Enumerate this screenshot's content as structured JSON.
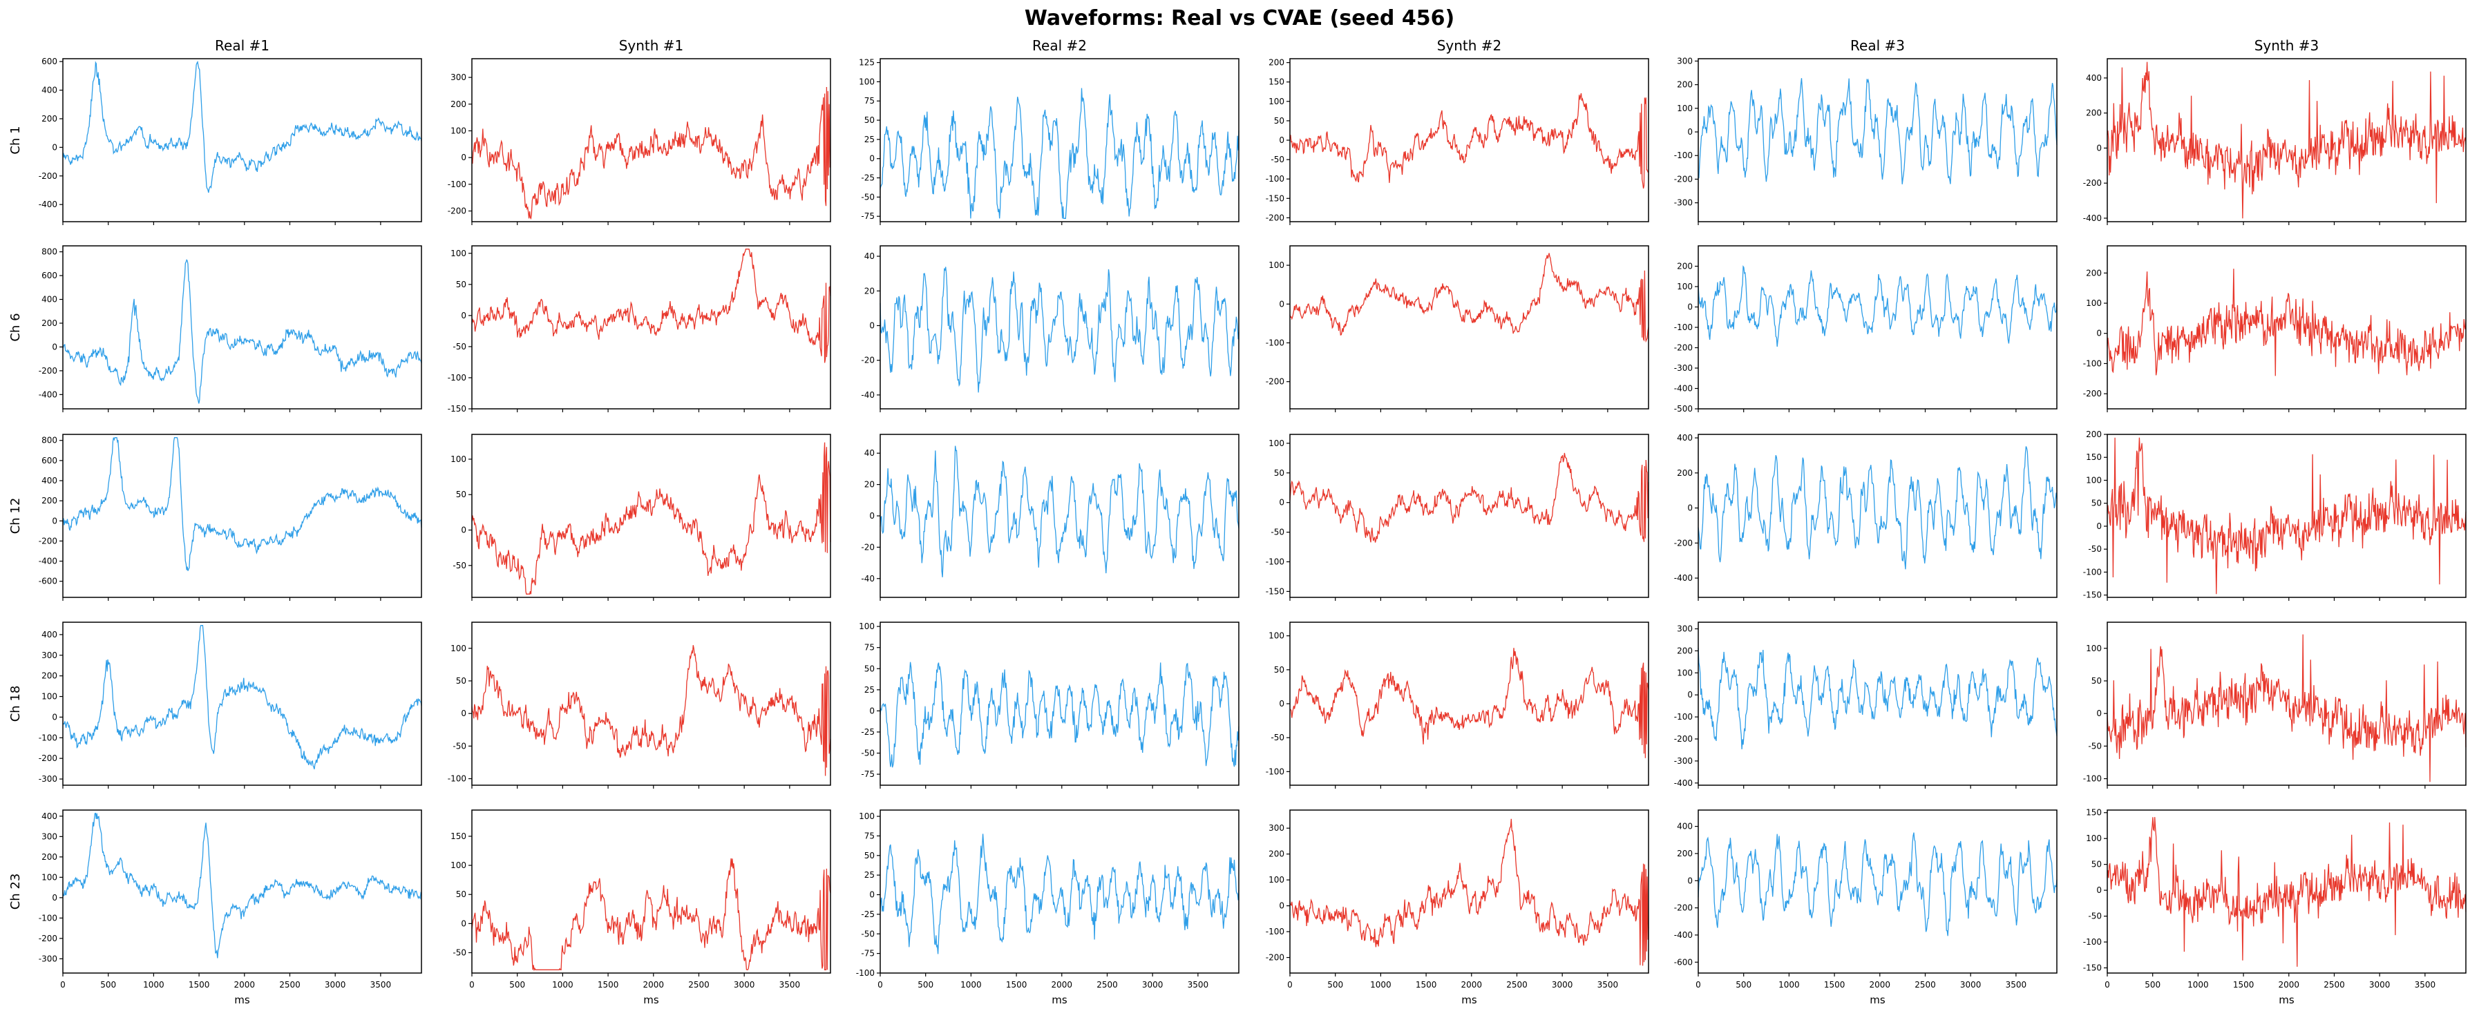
{
  "figure": {
    "title": "Waveforms: Real vs CVAE (seed 456)",
    "colors": {
      "real": "#2e9ee8",
      "synth": "#e8372b",
      "frame": "#000000"
    },
    "x_label": "ms",
    "x_ticks": [
      0,
      500,
      1000,
      1500,
      2000,
      2500,
      3000,
      3500
    ],
    "x_range": [
      0,
      3950
    ]
  },
  "columns": [
    "Real #1",
    "Synth #1",
    "Real #2",
    "Synth #2",
    "Real #3",
    "Synth #3"
  ],
  "rows": [
    "Ch 1",
    "Ch 6",
    "Ch 12",
    "Ch 18",
    "Ch 23"
  ],
  "chart_data": [
    {
      "type": "line",
      "row": "Ch 1",
      "column": "Real #1",
      "kind": "real",
      "ylim": [
        -520,
        620
      ],
      "yticks": [
        -400,
        -200,
        0,
        200,
        400,
        600
      ],
      "shape": "ecg",
      "amp": 560,
      "seed": 11
    },
    {
      "type": "line",
      "row": "Ch 1",
      "column": "Synth #1",
      "kind": "synth",
      "ylim": [
        -240,
        370
      ],
      "yticks": [
        -200,
        -100,
        0,
        100,
        200,
        300
      ],
      "shape": "smooth",
      "amp": 340,
      "seed": 12
    },
    {
      "type": "line",
      "row": "Ch 1",
      "column": "Real #2",
      "kind": "real",
      "ylim": [
        -82,
        130
      ],
      "yticks": [
        -75,
        -50,
        -25,
        0,
        25,
        50,
        75,
        100,
        125
      ],
      "shape": "periodic",
      "amp": 120,
      "seed": 13
    },
    {
      "type": "line",
      "row": "Ch 1",
      "column": "Synth #2",
      "kind": "synth",
      "ylim": [
        -210,
        210
      ],
      "yticks": [
        -200,
        -150,
        -100,
        -50,
        0,
        50,
        100,
        150,
        200
      ],
      "shape": "smooth",
      "amp": 190,
      "seed": 14
    },
    {
      "type": "line",
      "row": "Ch 1",
      "column": "Real #3",
      "kind": "real",
      "ylim": [
        -380,
        310
      ],
      "yticks": [
        -300,
        -200,
        -100,
        0,
        100,
        200,
        300
      ],
      "shape": "noisy",
      "amp": 280,
      "seed": 15
    },
    {
      "type": "line",
      "row": "Ch 1",
      "column": "Synth #3",
      "kind": "synth",
      "ylim": [
        -420,
        510
      ],
      "yticks": [
        -400,
        -200,
        0,
        200,
        400
      ],
      "shape": "spiky",
      "amp": 480,
      "seed": 16
    },
    {
      "type": "line",
      "row": "Ch 6",
      "column": "Real #1",
      "kind": "real",
      "ylim": [
        -520,
        850
      ],
      "yticks": [
        -400,
        -200,
        0,
        200,
        400,
        600,
        800
      ],
      "shape": "ecg",
      "amp": 800,
      "seed": 21
    },
    {
      "type": "line",
      "row": "Ch 6",
      "column": "Synth #1",
      "kind": "synth",
      "ylim": [
        -150,
        112
      ],
      "yticks": [
        -150,
        -100,
        -50,
        0,
        50,
        100
      ],
      "shape": "smooth",
      "amp": 100,
      "seed": 22
    },
    {
      "type": "line",
      "row": "Ch 6",
      "column": "Real #2",
      "kind": "real",
      "ylim": [
        -48,
        46
      ],
      "yticks": [
        -40,
        -20,
        0,
        20,
        40
      ],
      "shape": "noisy",
      "amp": 44,
      "seed": 23
    },
    {
      "type": "line",
      "row": "Ch 6",
      "column": "Synth #2",
      "kind": "synth",
      "ylim": [
        -270,
        150
      ],
      "yticks": [
        -200,
        -100,
        0,
        100
      ],
      "shape": "smooth",
      "amp": 140,
      "seed": 24
    },
    {
      "type": "line",
      "row": "Ch 6",
      "column": "Real #3",
      "kind": "real",
      "ylim": [
        -500,
        300
      ],
      "yticks": [
        -500,
        -400,
        -300,
        -200,
        -100,
        0,
        100,
        200
      ],
      "shape": "noisy",
      "amp": 240,
      "seed": 25
    },
    {
      "type": "line",
      "row": "Ch 6",
      "column": "Synth #3",
      "kind": "synth",
      "ylim": [
        -250,
        290
      ],
      "yticks": [
        -200,
        -100,
        0,
        100,
        200
      ],
      "shape": "spiky",
      "amp": 260,
      "seed": 26
    },
    {
      "type": "line",
      "row": "Ch 12",
      "column": "Real #1",
      "kind": "real",
      "ylim": [
        -760,
        860
      ],
      "yticks": [
        -600,
        -400,
        -200,
        0,
        200,
        400,
        600,
        800
      ],
      "shape": "ecg",
      "amp": 800,
      "seed": 31
    },
    {
      "type": "line",
      "row": "Ch 12",
      "column": "Synth #1",
      "kind": "synth",
      "ylim": [
        -95,
        135
      ],
      "yticks": [
        -50,
        0,
        50,
        100
      ],
      "shape": "smooth",
      "amp": 120,
      "seed": 32
    },
    {
      "type": "line",
      "row": "Ch 12",
      "column": "Real #2",
      "kind": "real",
      "ylim": [
        -52,
        52
      ],
      "yticks": [
        -40,
        -20,
        0,
        20,
        40
      ],
      "shape": "noisy",
      "amp": 48,
      "seed": 33
    },
    {
      "type": "line",
      "row": "Ch 12",
      "column": "Synth #2",
      "kind": "synth",
      "ylim": [
        -160,
        115
      ],
      "yticks": [
        -150,
        -100,
        -50,
        0,
        50,
        100
      ],
      "shape": "smooth",
      "amp": 105,
      "seed": 34
    },
    {
      "type": "line",
      "row": "Ch 12",
      "column": "Real #3",
      "kind": "real",
      "ylim": [
        -510,
        420
      ],
      "yticks": [
        -400,
        -200,
        0,
        200,
        400
      ],
      "shape": "noisy",
      "amp": 390,
      "seed": 35
    },
    {
      "type": "line",
      "row": "Ch 12",
      "column": "Synth #3",
      "kind": "synth",
      "ylim": [
        -155,
        200
      ],
      "yticks": [
        -150,
        -100,
        -50,
        0,
        50,
        100,
        150,
        200
      ],
      "shape": "spiky",
      "amp": 180,
      "seed": 36
    },
    {
      "type": "line",
      "row": "Ch 18",
      "column": "Real #1",
      "kind": "real",
      "ylim": [
        -330,
        460
      ],
      "yticks": [
        -300,
        -200,
        -100,
        0,
        100,
        200,
        300,
        400
      ],
      "shape": "ecg",
      "amp": 430,
      "seed": 41
    },
    {
      "type": "line",
      "row": "Ch 18",
      "column": "Synth #1",
      "kind": "synth",
      "ylim": [
        -110,
        140
      ],
      "yticks": [
        -100,
        -50,
        0,
        50,
        100
      ],
      "shape": "smooth",
      "amp": 130,
      "seed": 42
    },
    {
      "type": "line",
      "row": "Ch 18",
      "column": "Real #2",
      "kind": "real",
      "ylim": [
        -88,
        105
      ],
      "yticks": [
        -75,
        -50,
        -25,
        0,
        25,
        50,
        75,
        100
      ],
      "shape": "periodic",
      "amp": 98,
      "seed": 43
    },
    {
      "type": "line",
      "row": "Ch 18",
      "column": "Synth #2",
      "kind": "synth",
      "ylim": [
        -120,
        120
      ],
      "yticks": [
        -100,
        -50,
        0,
        50,
        100
      ],
      "shape": "smooth",
      "amp": 110,
      "seed": 44
    },
    {
      "type": "line",
      "row": "Ch 18",
      "column": "Real #3",
      "kind": "real",
      "ylim": [
        -410,
        330
      ],
      "yticks": [
        -400,
        -300,
        -200,
        -100,
        0,
        100,
        200,
        300
      ],
      "shape": "periodic",
      "amp": 310,
      "seed": 45
    },
    {
      "type": "line",
      "row": "Ch 18",
      "column": "Synth #3",
      "kind": "synth",
      "ylim": [
        -110,
        140
      ],
      "yticks": [
        -100,
        -50,
        0,
        50,
        100
      ],
      "shape": "spiky",
      "amp": 125,
      "seed": 46
    },
    {
      "type": "line",
      "row": "Ch 23",
      "column": "Real #1",
      "kind": "real",
      "ylim": [
        -370,
        430
      ],
      "yticks": [
        -300,
        -200,
        -100,
        0,
        100,
        200,
        300,
        400
      ],
      "shape": "ecg",
      "amp": 400,
      "seed": 51
    },
    {
      "type": "line",
      "row": "Ch 23",
      "column": "Synth #1",
      "kind": "synth",
      "ylim": [
        -85,
        195
      ],
      "yticks": [
        -50,
        0,
        50,
        100,
        150
      ],
      "shape": "smooth",
      "amp": 180,
      "seed": 52
    },
    {
      "type": "line",
      "row": "Ch 23",
      "column": "Real #2",
      "kind": "real",
      "ylim": [
        -100,
        108
      ],
      "yticks": [
        -100,
        -75,
        -50,
        -25,
        0,
        25,
        50,
        75,
        100
      ],
      "shape": "periodic",
      "amp": 98,
      "seed": 53
    },
    {
      "type": "line",
      "row": "Ch 23",
      "column": "Synth #2",
      "kind": "synth",
      "ylim": [
        -260,
        370
      ],
      "yticks": [
        -200,
        -100,
        0,
        100,
        200,
        300
      ],
      "shape": "smooth",
      "amp": 330,
      "seed": 54
    },
    {
      "type": "line",
      "row": "Ch 23",
      "column": "Real #3",
      "kind": "real",
      "ylim": [
        -680,
        520
      ],
      "yticks": [
        -600,
        -400,
        -200,
        0,
        200,
        400
      ],
      "shape": "noisy",
      "amp": 480,
      "seed": 55
    },
    {
      "type": "line",
      "row": "Ch 23",
      "column": "Synth #3",
      "kind": "synth",
      "ylim": [
        -160,
        155
      ],
      "yticks": [
        -150,
        -100,
        -50,
        0,
        50,
        100,
        150
      ],
      "shape": "spiky",
      "amp": 140,
      "seed": 56
    }
  ]
}
